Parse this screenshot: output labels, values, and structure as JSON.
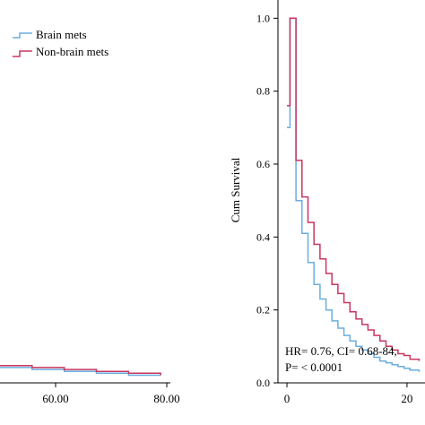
{
  "chart_data": [
    {
      "type": "line",
      "panel": "left",
      "step": true,
      "xlabel": "",
      "ylabel": "",
      "x_tick_labels": [
        "60.00",
        "80.00"
      ],
      "x_ticks": [
        60,
        80
      ],
      "xlim": [
        30,
        83
      ],
      "ylim": [
        0,
        1
      ],
      "legend": {
        "placement": "top-right",
        "entries": [
          {
            "name": "Brain mets",
            "color": "#6aaee0"
          },
          {
            "name": "Non-brain mets",
            "color": "#c8365f"
          }
        ]
      },
      "series": [
        {
          "name": "Brain mets",
          "color": "#6aaee0",
          "x": [
            30,
            40,
            50,
            60,
            70,
            80
          ],
          "values": [
            0.04,
            0.035,
            0.03,
            0.025,
            0.02,
            0.02
          ]
        },
        {
          "name": "Non-brain mets",
          "color": "#c8365f",
          "x": [
            30,
            40,
            50,
            60,
            70,
            80
          ],
          "values": [
            0.045,
            0.04,
            0.035,
            0.03,
            0.025,
            0.02
          ]
        }
      ]
    },
    {
      "type": "line",
      "panel": "right",
      "step": true,
      "xlabel": "",
      "ylabel": "Cum Survival",
      "x_ticks": [
        0,
        20
      ],
      "x_tick_labels": [
        "0",
        "20"
      ],
      "y_ticks": [
        0.0,
        0.2,
        0.4,
        0.6,
        0.8,
        1.0
      ],
      "y_tick_labels": [
        "0.0",
        "0.2",
        "0.4",
        "0.6",
        "0.8",
        "1.0"
      ],
      "xlim": [
        -1.5,
        23
      ],
      "ylim": [
        0,
        1.05
      ],
      "annotation": {
        "line1": "HR= 0.76,  CI=  0.68-84,",
        "line2": "P= < 0.0001"
      },
      "series": [
        {
          "name": "Brain mets",
          "color": "#6aaee0",
          "x": [
            0,
            0.5,
            1.5,
            2.5,
            3.5,
            4.5,
            5.5,
            6.5,
            7.5,
            8.5,
            9.5,
            10.5,
            11.5,
            12.5,
            13.5,
            14.5,
            15.5,
            16.5,
            17.5,
            18.5,
            19.5,
            20.5,
            22
          ],
          "values": [
            0.7,
            1.0,
            0.5,
            0.41,
            0.33,
            0.27,
            0.23,
            0.2,
            0.17,
            0.15,
            0.13,
            0.115,
            0.1,
            0.09,
            0.08,
            0.07,
            0.06,
            0.055,
            0.05,
            0.045,
            0.04,
            0.035,
            0.03
          ]
        },
        {
          "name": "Non-brain mets",
          "color": "#c8365f",
          "x": [
            0,
            0.5,
            1.5,
            2.5,
            3.5,
            4.5,
            5.5,
            6.5,
            7.5,
            8.5,
            9.5,
            10.5,
            11.5,
            12.5,
            13.5,
            14.5,
            15.5,
            16.5,
            17.5,
            18.5,
            19.5,
            20.5,
            22
          ],
          "values": [
            0.76,
            1.0,
            0.61,
            0.51,
            0.44,
            0.38,
            0.34,
            0.3,
            0.27,
            0.245,
            0.22,
            0.195,
            0.175,
            0.16,
            0.145,
            0.13,
            0.115,
            0.1,
            0.09,
            0.08,
            0.075,
            0.065,
            0.06
          ]
        }
      ]
    }
  ]
}
